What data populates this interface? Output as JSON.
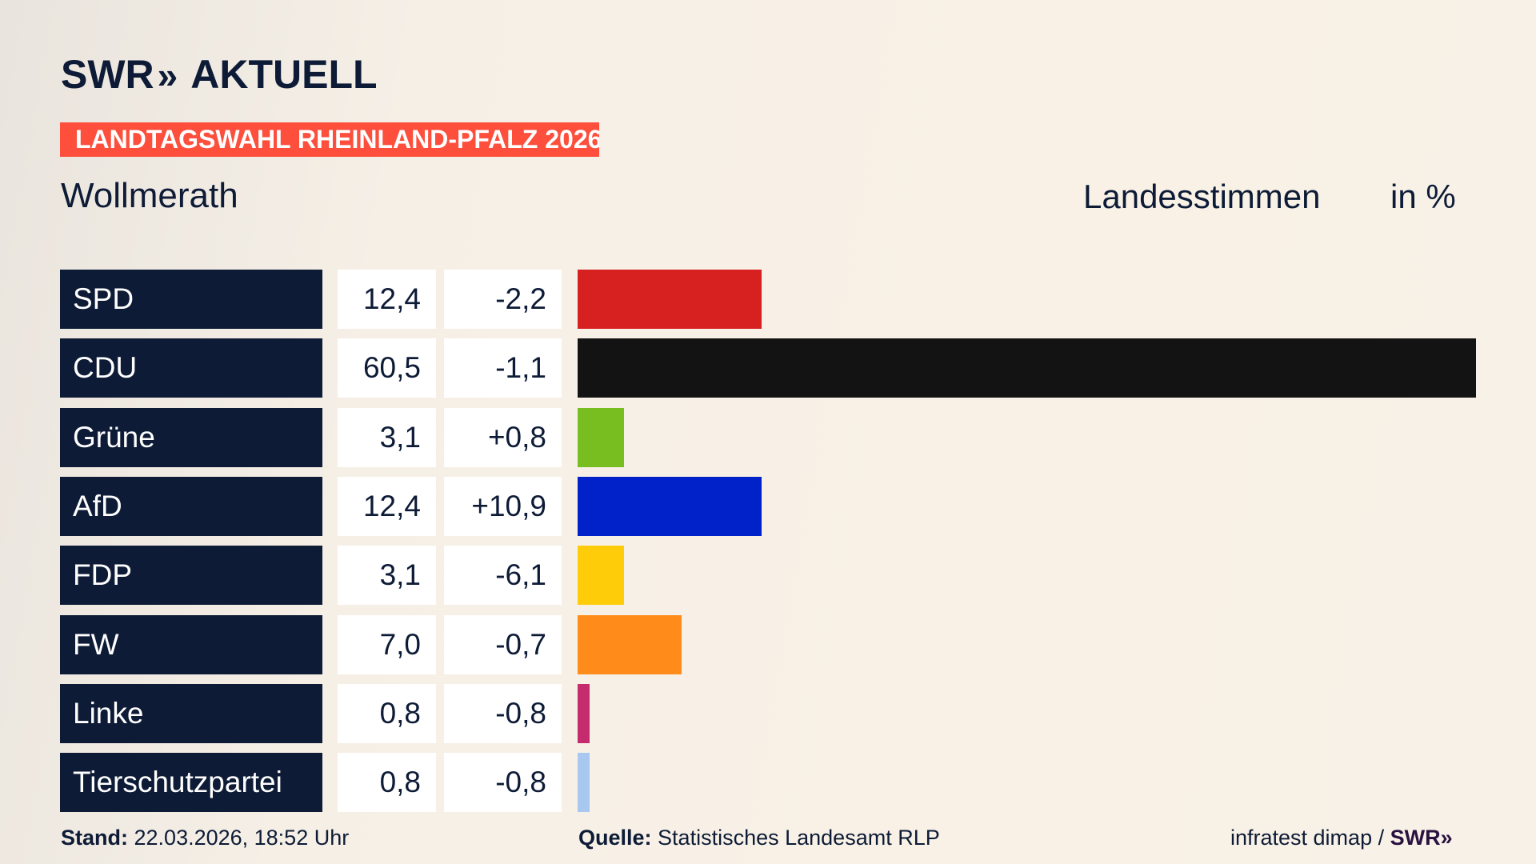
{
  "logo": {
    "brand": "SWR",
    "chevrons": "»",
    "product": "AKTUELL"
  },
  "banner": "LANDTAGSWAHL RHEINLAND-PFALZ 2026",
  "place": "Wollmerath",
  "vote_type": "Landesstimmen",
  "unit": "in %",
  "chart_data": {
    "type": "bar",
    "orientation": "horizontal",
    "categories": [
      "SPD",
      "CDU",
      "Grüne",
      "AfD",
      "FDP",
      "FW",
      "Linke",
      "Tierschutzpartei"
    ],
    "values": [
      "12,4",
      "60,5",
      "3,1",
      "12,4",
      "3,1",
      "7,0",
      "0,8",
      "0,8"
    ],
    "numeric_values": [
      12.4,
      60.5,
      3.1,
      12.4,
      3.1,
      7.0,
      0.8,
      0.8
    ],
    "changes": [
      "-2,2",
      "-1,1",
      "+0,8",
      "+10,9",
      "-6,1",
      "-0,7",
      "-0,8",
      "-0,8"
    ],
    "colors": [
      "#d72121",
      "#131313",
      "#78be20",
      "#0022c8",
      "#ffcc0a",
      "#ff8c1a",
      "#c42c6e",
      "#a8c8f0"
    ],
    "xlim": [
      0,
      60.5
    ]
  },
  "footer": {
    "stand_label": "Stand:",
    "stand_value": "22.03.2026, 18:52 Uhr",
    "source_label": "Quelle:",
    "source_value": "Statistisches Landesamt RLP",
    "credit": "infratest dimap /",
    "credit_brand": "SWR»"
  }
}
